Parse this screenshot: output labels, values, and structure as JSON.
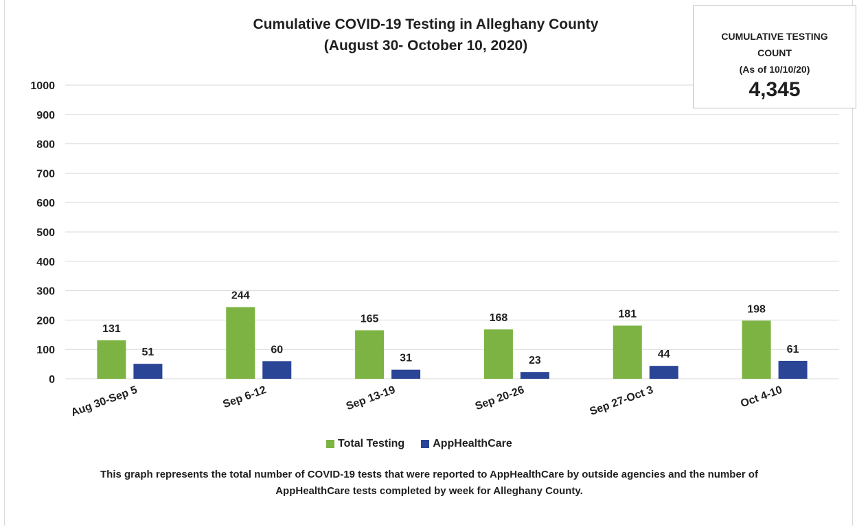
{
  "callout": {
    "line1": "CUMULATIVE TESTING",
    "line2": "COUNT",
    "line3": "(As of 10/10/20)",
    "count": "4,345"
  },
  "caption": {
    "line1": "This graph represents the total number of COVID-19 tests that were reported to AppHealthCare by outside agencies and the number of",
    "line2": "AppHealthCare tests completed by week for Alleghany County."
  },
  "colors": {
    "total": "#7cb342",
    "apphealth": "#2a4596",
    "grid": "#d9d9d9"
  },
  "chart_data": {
    "type": "bar",
    "title": "Cumulative COVID-19 Testing in Alleghany County",
    "subtitle": "(August 30- October 10, 2020)",
    "xlabel": "",
    "ylabel": "",
    "ylim": [
      0,
      1000
    ],
    "yticks": [
      0,
      100,
      200,
      300,
      400,
      500,
      600,
      700,
      800,
      900,
      1000
    ],
    "grid": true,
    "legend_position": "bottom",
    "categories": [
      "Aug 30-Sep 5",
      "Sep 6-12",
      "Sep 13-19",
      "Sep 20-26",
      "Sep 27-Oct 3",
      "Oct 4-10"
    ],
    "series": [
      {
        "name": "Total Testing",
        "values": [
          131,
          244,
          165,
          168,
          181,
          198
        ]
      },
      {
        "name": "AppHealthCare",
        "values": [
          51,
          60,
          31,
          23,
          44,
          61
        ]
      }
    ]
  }
}
